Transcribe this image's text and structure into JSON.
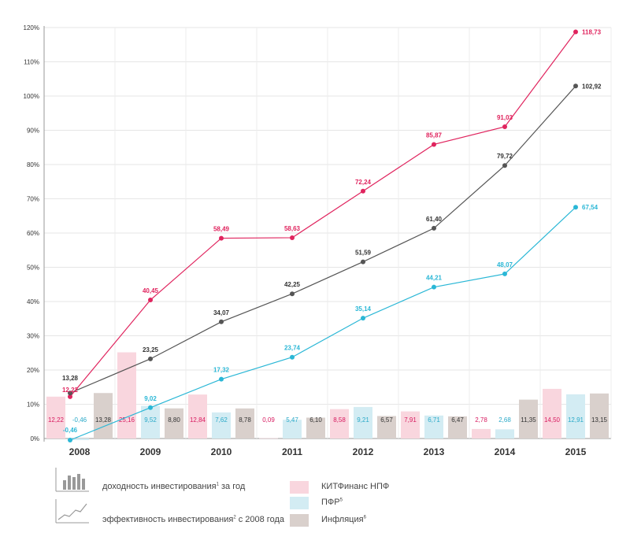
{
  "chart_data": {
    "type": "bar+line",
    "categories": [
      "2008",
      "2009",
      "2010",
      "2011",
      "2012",
      "2013",
      "2014",
      "2015"
    ],
    "y_ticks": [
      "0%",
      "10%",
      "20%",
      "30%",
      "40%",
      "50%",
      "60%",
      "70%",
      "80%",
      "90%",
      "100%",
      "110%",
      "120%"
    ],
    "ylim": [
      0,
      120
    ],
    "bar_series": [
      {
        "name": "КИТФинанс НПФ",
        "color": "#f9d6de",
        "label_color": "#d81b60",
        "values": [
          12.22,
          25.16,
          12.84,
          0.09,
          8.58,
          7.91,
          2.78,
          14.5
        ],
        "labels": [
          "12,22",
          "25,16",
          "12,84",
          "0,09",
          "8,58",
          "7,91",
          "2,78",
          "14,50"
        ]
      },
      {
        "name": "ПФР",
        "color": "#d3ecf3",
        "label_color": "#29a9c8",
        "values": [
          -0.46,
          9.52,
          7.62,
          5.47,
          9.21,
          6.71,
          2.68,
          12.91
        ],
        "labels": [
          "-0,46",
          "9,52",
          "7,62",
          "5,47",
          "9,21",
          "6,71",
          "2,68",
          "12,91"
        ]
      },
      {
        "name": "Инфляция",
        "color": "#d9d0cc",
        "label_color": "#333333",
        "values": [
          13.28,
          8.8,
          8.78,
          6.1,
          6.57,
          6.47,
          11.35,
          13.15
        ],
        "labels": [
          "13,28",
          "8,80",
          "8,78",
          "6,10",
          "6,57",
          "6,47",
          "11,35",
          "13,15"
        ]
      }
    ],
    "line_series": [
      {
        "name": "КИТФинанс НПФ",
        "color": "#e0245e",
        "values": [
          12.22,
          40.45,
          58.49,
          58.63,
          72.24,
          85.87,
          91.03,
          118.73
        ],
        "labels": [
          "12,22",
          "40,45",
          "58,49",
          "58,63",
          "72,24",
          "85,87",
          "91,03",
          "118,73"
        ]
      },
      {
        "name": "Инфляция",
        "color": "#555555",
        "values": [
          13.28,
          23.25,
          34.07,
          42.25,
          51.59,
          61.4,
          79.72,
          102.92
        ],
        "labels": [
          "13,28",
          "23,25",
          "34,07",
          "42,25",
          "51,59",
          "61,40",
          "79,72",
          "102,92"
        ]
      },
      {
        "name": "ПФР",
        "color": "#2ab7d6",
        "values": [
          -0.46,
          9.02,
          17.32,
          23.74,
          35.14,
          44.21,
          48.07,
          67.54
        ],
        "labels": [
          "-0,46",
          "9,02",
          "17,32",
          "23,74",
          "35,14",
          "44,21",
          "48,07",
          "67,54"
        ]
      }
    ]
  },
  "legend": {
    "bars_text": "доходность инвестирования",
    "bars_sup": "1",
    "bars_suffix": " за год",
    "lines_text": "эффективность инвестирования",
    "lines_sup": "2",
    "lines_suffix": " с 2008 года",
    "kit_label": "КИТФинанс НПФ",
    "pfr_label": "ПФР",
    "pfr_sup": "5",
    "infl_label": "Инфляция",
    "infl_sup": "6"
  }
}
